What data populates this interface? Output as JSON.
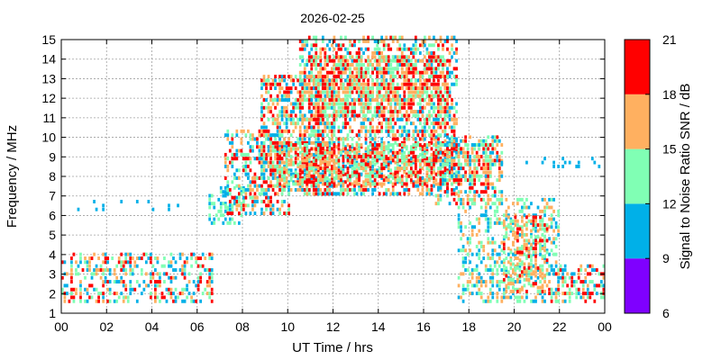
{
  "chart_data": {
    "type": "heatmap",
    "title": "2026-02-25",
    "xlabel": "UT Time / hrs",
    "ylabel": "Frequency / MHz",
    "xlim": [
      0,
      24
    ],
    "ylim": [
      1,
      15
    ],
    "x_ticks": [
      "00",
      "02",
      "04",
      "06",
      "08",
      "10",
      "12",
      "14",
      "16",
      "18",
      "20",
      "22",
      "00"
    ],
    "y_ticks": [
      "1",
      "2",
      "3",
      "4",
      "5",
      "6",
      "7",
      "8",
      "9",
      "10",
      "11",
      "12",
      "13",
      "14",
      "15"
    ],
    "grid": true,
    "colorbar": {
      "label": "Signal to Noise Ratio SNR / dB",
      "ticks": [
        "6",
        "9",
        "12",
        "15",
        "18",
        "21"
      ],
      "bins": [
        {
          "from": 6,
          "to": 9,
          "color": "#7f00ff"
        },
        {
          "from": 9,
          "to": 12,
          "color": "#00b0e8"
        },
        {
          "from": 12,
          "to": 15,
          "color": "#80ffb4"
        },
        {
          "from": 15,
          "to": 18,
          "color": "#ffb060"
        },
        {
          "from": 18,
          "to": 21,
          "color": "#ff0000"
        }
      ]
    },
    "regions": [
      {
        "t": [
          0,
          6.6
        ],
        "f": [
          1.5,
          4.0
        ],
        "density": 0.4,
        "snr": [
          9,
          21
        ]
      },
      {
        "t": [
          0.5,
          5.5
        ],
        "f": [
          6.2,
          6.8
        ],
        "density": 0.06,
        "snr": [
          9,
          12
        ]
      },
      {
        "t": [
          6.5,
          8.0
        ],
        "f": [
          5.5,
          7.5
        ],
        "density": 0.45,
        "snr": [
          9,
          15
        ]
      },
      {
        "t": [
          7.2,
          10.0
        ],
        "f": [
          6.0,
          10.2
        ],
        "density": 0.45,
        "snr": [
          9,
          21
        ]
      },
      {
        "t": [
          8.8,
          12.0
        ],
        "f": [
          7.0,
          13.0
        ],
        "density": 0.55,
        "snr": [
          9,
          21
        ]
      },
      {
        "t": [
          10.5,
          17.5
        ],
        "f": [
          7.0,
          15.0
        ],
        "density": 0.5,
        "snr": [
          9,
          21
        ]
      },
      {
        "t": [
          11.0,
          17.0
        ],
        "f": [
          11.0,
          14.0
        ],
        "density": 0.55,
        "snr": [
          12,
          21
        ]
      },
      {
        "t": [
          9.5,
          19.0
        ],
        "f": [
          7.5,
          9.5
        ],
        "density": 0.55,
        "snr": [
          12,
          21
        ]
      },
      {
        "t": [
          16.5,
          19.5
        ],
        "f": [
          6.5,
          10.0
        ],
        "density": 0.4,
        "snr": [
          9,
          21
        ]
      },
      {
        "t": [
          17.5,
          22.0
        ],
        "f": [
          1.5,
          6.8
        ],
        "density": 0.35,
        "snr": [
          9,
          18
        ]
      },
      {
        "t": [
          19.5,
          21.5
        ],
        "f": [
          2.0,
          6.0
        ],
        "density": 0.45,
        "snr": [
          12,
          21
        ]
      },
      {
        "t": [
          21.5,
          24.0
        ],
        "f": [
          1.5,
          3.5
        ],
        "density": 0.45,
        "snr": [
          9,
          21
        ]
      },
      {
        "t": [
          19.0,
          24.0
        ],
        "f": [
          8.4,
          8.8
        ],
        "density": 0.12,
        "snr": [
          9,
          12
        ]
      }
    ]
  }
}
